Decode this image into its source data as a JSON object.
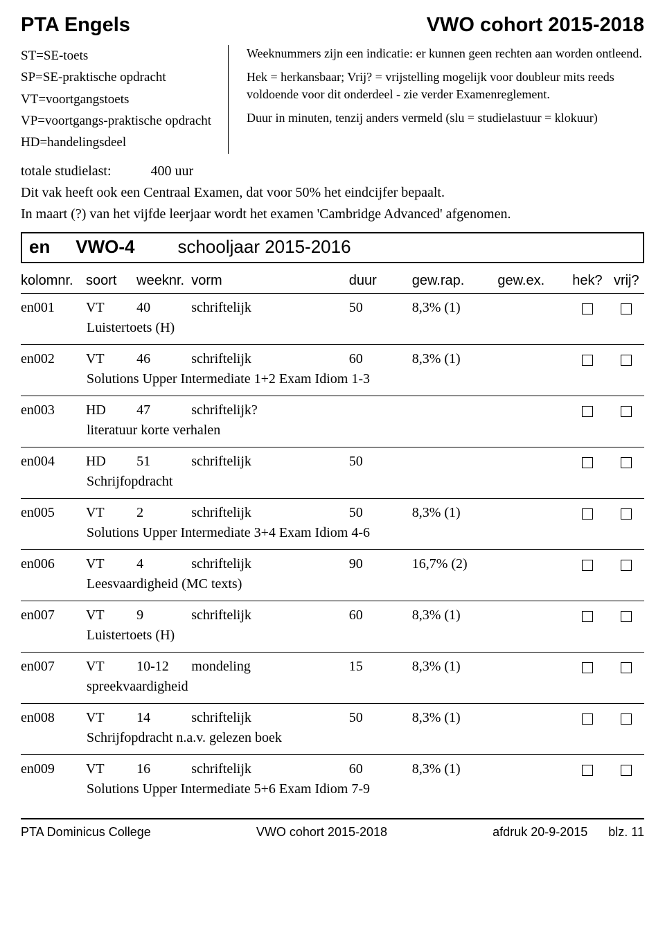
{
  "header": {
    "title_left": "PTA Engels",
    "title_right": "VWO  cohort 2015-2018"
  },
  "legend": {
    "left": [
      "ST=SE-toets",
      "SP=SE-praktische opdracht",
      "VT=voortgangstoets",
      "VP=voortgangs-praktische opdracht",
      "HD=handelingsdeel"
    ],
    "right": [
      "Weeknummers zijn een indicatie: er kunnen geen rechten aan worden ontleend.",
      "Hek = herkansbaar; Vrij? = vrijstelling mogelijk voor doubleur mits reeds voldoende voor dit onderdeel - zie verder Examenreglement.",
      "Duur in minuten, tenzij anders vermeld (slu = studielastuur = klokuur)"
    ]
  },
  "intro": {
    "studielast_label": "totale studielast:",
    "studielast_value": "400  uur",
    "line1": "Dit vak heeft ook een Centraal Examen, dat voor 50% het eindcijfer bepaalt.",
    "line2": "In maart (?) van het vijfde leerjaar wordt het examen 'Cambridge Advanced' afgenomen."
  },
  "section": {
    "subject": "en",
    "level": "VWO-4",
    "year": "schooljaar 2015-2016"
  },
  "columns": {
    "kolomnr": "kolomnr.",
    "soort": "soort",
    "weeknr": "weeknr.",
    "vorm": "vorm",
    "duur": "duur",
    "gewrap": "gew.rap.",
    "gewex": "gew.ex.",
    "hek": "hek?",
    "vrij": "vrij?"
  },
  "rows": [
    {
      "kolom": "en001",
      "soort": "VT",
      "week": "40",
      "vorm": "schriftelijk",
      "duur": "50",
      "rap": "8,3% (1)",
      "ex": "",
      "desc": "Luistertoets (H)"
    },
    {
      "kolom": "en002",
      "soort": "VT",
      "week": "46",
      "vorm": "schriftelijk",
      "duur": "60",
      "rap": "8,3% (1)",
      "ex": "",
      "desc": "Solutions Upper Intermediate 1+2 Exam Idiom 1-3"
    },
    {
      "kolom": "en003",
      "soort": "HD",
      "week": "47",
      "vorm": "schriftelijk?",
      "duur": "",
      "rap": "",
      "ex": "",
      "desc": "literatuur korte verhalen"
    },
    {
      "kolom": "en004",
      "soort": "HD",
      "week": "51",
      "vorm": "schriftelijk",
      "duur": "50",
      "rap": "",
      "ex": "",
      "desc": "Schrijfopdracht"
    },
    {
      "kolom": "en005",
      "soort": "VT",
      "week": "2",
      "vorm": "schriftelijk",
      "duur": "50",
      "rap": "8,3% (1)",
      "ex": "",
      "desc": "Solutions Upper Intermediate 3+4 Exam Idiom 4-6"
    },
    {
      "kolom": "en006",
      "soort": "VT",
      "week": "4",
      "vorm": "schriftelijk",
      "duur": "90",
      "rap": "16,7% (2)",
      "ex": "",
      "desc": "Leesvaardigheid (MC texts)"
    },
    {
      "kolom": "en007",
      "soort": "VT",
      "week": "9",
      "vorm": "schriftelijk",
      "duur": "60",
      "rap": "8,3% (1)",
      "ex": "",
      "desc": "Luistertoets (H)"
    },
    {
      "kolom": "en007",
      "soort": "VT",
      "week": "10-12",
      "vorm": "mondeling",
      "duur": "15",
      "rap": "8,3% (1)",
      "ex": "",
      "desc": "spreekvaardigheid"
    },
    {
      "kolom": "en008",
      "soort": "VT",
      "week": "14",
      "vorm": "schriftelijk",
      "duur": "50",
      "rap": "8,3% (1)",
      "ex": "",
      "desc": "Schrijfopdracht n.a.v. gelezen boek"
    },
    {
      "kolom": "en009",
      "soort": "VT",
      "week": "16",
      "vorm": "schriftelijk",
      "duur": "60",
      "rap": "8,3% (1)",
      "ex": "",
      "desc": "Solutions Upper Intermediate 5+6 Exam Idiom 7-9"
    }
  ],
  "footer": {
    "left": "PTA Dominicus College",
    "center": "VWO  cohort 2015-2018",
    "right_label": "afdruk 20-9-2015",
    "page": "blz. 11"
  }
}
